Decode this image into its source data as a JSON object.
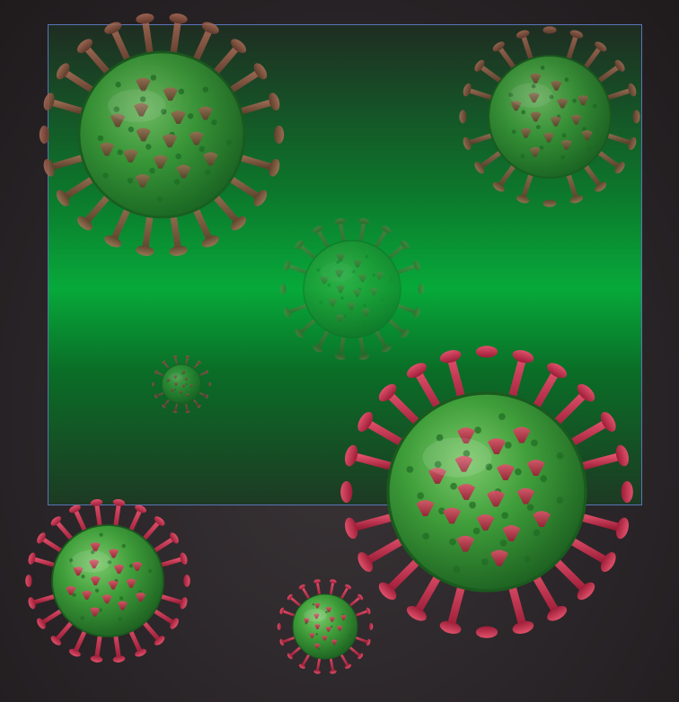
{
  "scene": {
    "description_colors": {
      "background": "#2b2629",
      "panel_top": "#1f2d22",
      "panel_glow": "#07a93a",
      "panel_border": "#5a74b8",
      "virus_body": "#3f9e3a",
      "virus_body_dark": "#1f6b23",
      "spike_red": "#c42a4a",
      "spike_brown": "#8a4a3a"
    },
    "icons": [
      "virus-icon"
    ]
  }
}
